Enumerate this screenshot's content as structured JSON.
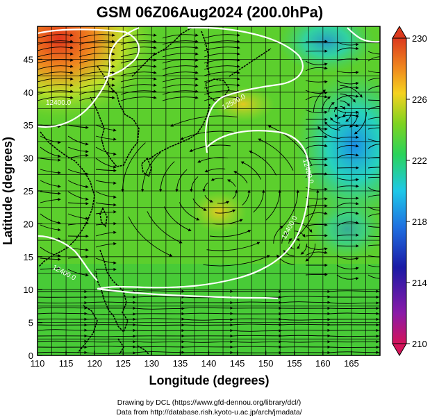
{
  "title": "GSM 06Z06Aug2024 (200.0hPa)",
  "x_axis": {
    "label": "Longitude (degrees)",
    "range": [
      110,
      170
    ],
    "ticks": [
      "110",
      "115",
      "120",
      "125",
      "130",
      "135",
      "140",
      "145",
      "150",
      "155",
      "160",
      "165"
    ]
  },
  "y_axis": {
    "label": "Latitude  (degrees)",
    "range": [
      0,
      50
    ],
    "ticks": [
      "0",
      "5",
      "10",
      "15",
      "20",
      "25",
      "30",
      "35",
      "40",
      "45"
    ]
  },
  "colorbar": {
    "labels": [
      "230",
      "226",
      "222",
      "218",
      "214",
      "210"
    ],
    "range": [
      210,
      230
    ],
    "colors": [
      "#d4145a",
      "#7b1fa2",
      "#1a1aa6",
      "#1f6fe0",
      "#1ec8e8",
      "#2ad35a",
      "#7ed321",
      "#f5d21f",
      "#f08a1e",
      "#dc3a1e"
    ]
  },
  "contour_labels": [
    "12400.0",
    "12400.0",
    "12500.0",
    "12400.0",
    "12400.0"
  ],
  "credits": {
    "line1": "Drawing by DCL (https://www.gfd-dennou.org/library/dcl/)",
    "line2": "Data from http://database.rish.kyoto-u.ac.jp/arch/jmadata/"
  }
}
